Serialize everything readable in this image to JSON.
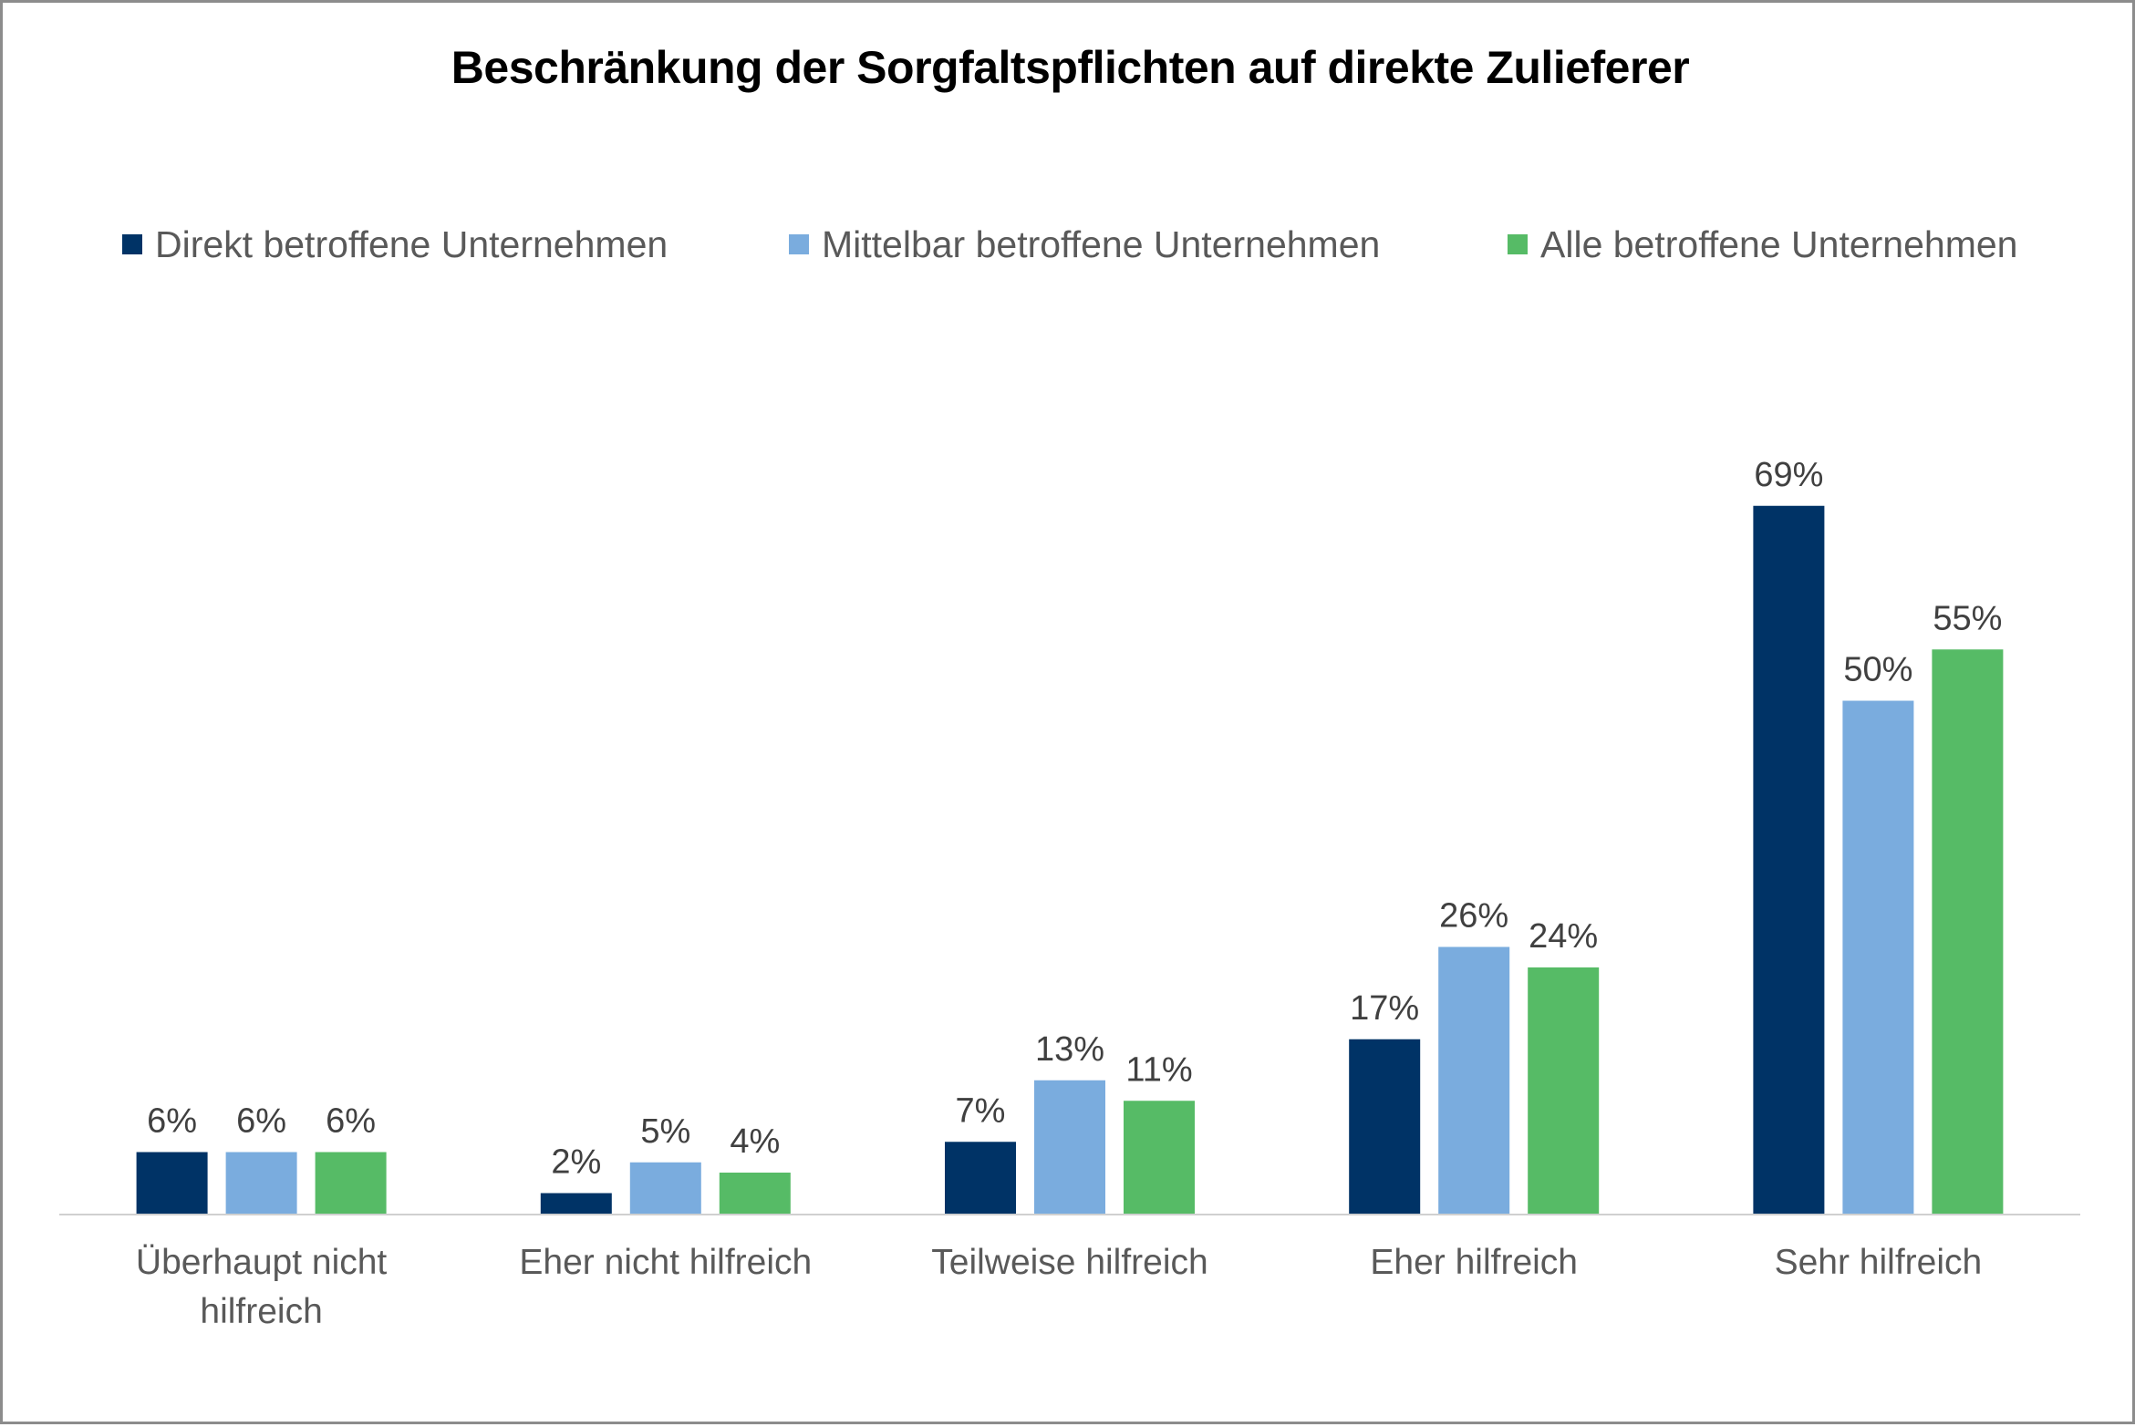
{
  "chart_data": {
    "type": "bar",
    "title": "Beschränkung der Sorgfaltspflichten auf direkte Zulieferer",
    "categories": [
      [
        "Überhaupt nicht",
        "hilfreich"
      ],
      [
        "Eher nicht hilfreich"
      ],
      [
        "Teilweise hilfreich"
      ],
      [
        "Eher hilfreich"
      ],
      [
        "Sehr hilfreich"
      ]
    ],
    "series": [
      {
        "name": "Direkt betroffene Unternehmen",
        "color": "#003366",
        "values": [
          6,
          2,
          7,
          17,
          69
        ],
        "labels": [
          "6%",
          "2%",
          "7%",
          "17%",
          "69%"
        ]
      },
      {
        "name": "Mittelbar betroffene Unternehmen",
        "color": "#7aacde",
        "values": [
          6,
          5,
          13,
          26,
          50
        ],
        "labels": [
          "6%",
          "5%",
          "13%",
          "26%",
          "50%"
        ]
      },
      {
        "name": "Alle betroffene Unternehmen",
        "color": "#56bb66",
        "values": [
          6,
          4,
          11,
          24,
          55
        ],
        "labels": [
          "6%",
          "4%",
          "11%",
          "24%",
          "55%"
        ]
      }
    ],
    "xlabel": "",
    "ylabel": "",
    "ylim": [
      0,
      70
    ],
    "grid": false,
    "legend_position": "top"
  }
}
